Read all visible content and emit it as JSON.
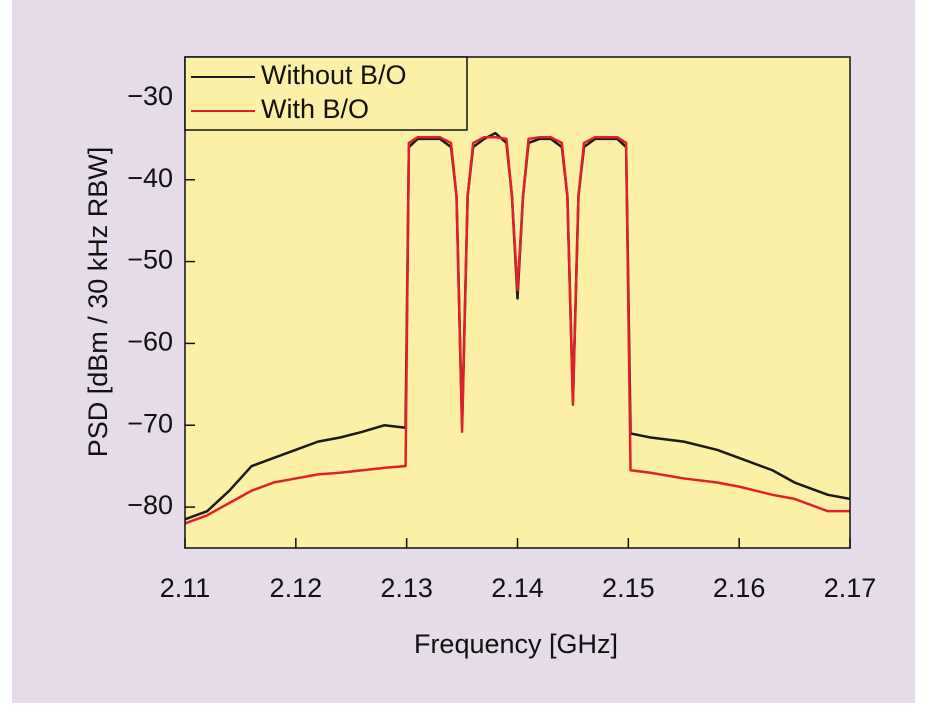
{
  "chart_data": {
    "type": "line",
    "x_label": "Frequency [GHz]",
    "y_label": "PSD [dBm / 30 kHz RBW]",
    "x": [
      2.11,
      2.112,
      2.114,
      2.116,
      2.118,
      2.12,
      2.122,
      2.124,
      2.126,
      2.128,
      2.1299,
      2.1302,
      2.131,
      2.133,
      2.134,
      2.1345,
      2.135,
      2.1355,
      2.136,
      2.137,
      2.138,
      2.139,
      2.1395,
      2.14,
      2.1405,
      2.141,
      2.142,
      2.143,
      2.144,
      2.1445,
      2.145,
      2.1455,
      2.146,
      2.147,
      2.149,
      2.1498,
      2.1502,
      2.152,
      2.155,
      2.158,
      2.16,
      2.163,
      2.165,
      2.168,
      2.17
    ],
    "series": [
      {
        "name": "Without B/O",
        "color": "#1a1a1a",
        "values": [
          -81.5,
          -80.5,
          -78,
          -75,
          -74,
          -73,
          -72,
          -71.5,
          -70.8,
          -70,
          -70.3,
          -36,
          -35,
          -35,
          -36,
          -42,
          -70,
          -42,
          -36,
          -35,
          -34.3,
          -35.5,
          -42,
          -54.5,
          -42,
          -35.5,
          -35,
          -35,
          -36,
          -42,
          -67,
          -42,
          -36,
          -35,
          -35,
          -36,
          -71,
          -71.5,
          -72,
          -73,
          -74,
          -75.5,
          -77,
          -78.5,
          -79
        ]
      },
      {
        "name": "With B/O",
        "color": "#e0202a",
        "values": [
          -82,
          -81,
          -79.5,
          -78,
          -77,
          -76.5,
          -76,
          -75.8,
          -75.5,
          -75.2,
          -75,
          -35.5,
          -34.8,
          -34.8,
          -35.5,
          -42,
          -70.8,
          -42,
          -35.5,
          -34.8,
          -34.8,
          -35,
          -42,
          -53.5,
          -42,
          -35,
          -34.8,
          -34.8,
          -35.5,
          -42,
          -67.5,
          -42,
          -35.5,
          -34.8,
          -34.8,
          -35.5,
          -75.5,
          -75.8,
          -76.5,
          -77,
          -77.5,
          -78.5,
          -79,
          -80.5,
          -80.5
        ]
      }
    ],
    "xlim": [
      2.11,
      2.17
    ],
    "xticks": [
      2.11,
      2.12,
      2.13,
      2.14,
      2.15,
      2.16,
      2.17
    ],
    "ylim": [
      -85,
      -25
    ],
    "yticks": [
      {
        "value": -80,
        "label": "−80"
      },
      {
        "value": -70,
        "label": "−70"
      },
      {
        "value": -60,
        "label": "−60"
      },
      {
        "value": -50,
        "label": "−50"
      },
      {
        "value": -40,
        "label": "−40"
      },
      {
        "value": -30,
        "label": "−30"
      }
    ],
    "legend": "upper left",
    "plot_background": "#fbf0a6"
  }
}
